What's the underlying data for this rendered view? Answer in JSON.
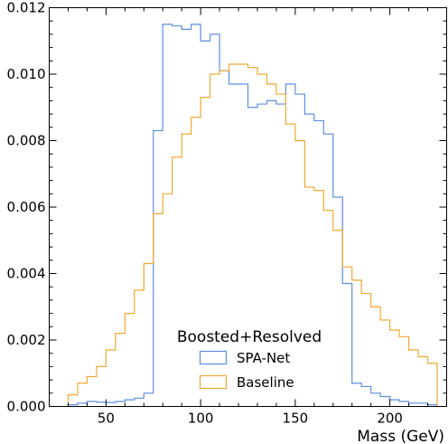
{
  "chart_data": {
    "type": "histogram",
    "title": "",
    "xlabel": "Mass (GeV)",
    "ylabel": "",
    "xlim": [
      20,
      230
    ],
    "ylim": [
      0,
      0.012
    ],
    "xticks": [
      50,
      100,
      150,
      200
    ],
    "yticks": [
      0.0,
      0.002,
      0.004,
      0.006,
      0.008,
      0.01,
      0.012
    ],
    "xtick_labels": [
      "50",
      "100",
      "150",
      "200"
    ],
    "ytick_labels": [
      "0.000",
      "0.002",
      "0.004",
      "0.006",
      "0.008",
      "0.010",
      "0.012"
    ],
    "grid": false,
    "legend": {
      "title": "Boosted+Resolved",
      "placement": "bottom-center"
    },
    "bin_edges": [
      30,
      35,
      40,
      45,
      50,
      55,
      60,
      65,
      70,
      75,
      80,
      85,
      90,
      95,
      100,
      105,
      110,
      115,
      120,
      125,
      130,
      135,
      140,
      145,
      150,
      155,
      160,
      165,
      170,
      175,
      180,
      185,
      190,
      195,
      200,
      205,
      210,
      215,
      220,
      225
    ],
    "series": [
      {
        "name": "SPA-Net",
        "color": "#5b8fe0",
        "values": [
          5e-05,
          0.0001,
          0.00015,
          0.00013,
          0.00012,
          0.00015,
          0.0002,
          0.00025,
          0.0004,
          0.0083,
          0.0115,
          0.01145,
          0.01135,
          0.0115,
          0.011,
          0.0112,
          0.0101,
          0.0097,
          0.0097,
          0.009,
          0.0091,
          0.0092,
          0.0091,
          0.0097,
          0.0094,
          0.0088,
          0.0086,
          0.0082,
          0.0063,
          0.0037,
          0.0007,
          0.0006,
          0.0004,
          0.0003,
          0.0002,
          0.00015,
          0.0001,
          0.0001,
          5e-05
        ]
      },
      {
        "name": "Baseline",
        "color": "#f0a830",
        "values": [
          0.00035,
          0.0007,
          0.0009,
          0.0012,
          0.0017,
          0.0022,
          0.0028,
          0.0035,
          0.0043,
          0.0058,
          0.0064,
          0.0075,
          0.0082,
          0.0087,
          0.0093,
          0.01,
          0.0101,
          0.0103,
          0.0103,
          0.0102,
          0.01,
          0.0097,
          0.0094,
          0.0085,
          0.008,
          0.0066,
          0.0065,
          0.0059,
          0.0053,
          0.0042,
          0.0038,
          0.0034,
          0.003,
          0.0026,
          0.0023,
          0.0021,
          0.0017,
          0.0015,
          0.0013
        ]
      }
    ]
  }
}
